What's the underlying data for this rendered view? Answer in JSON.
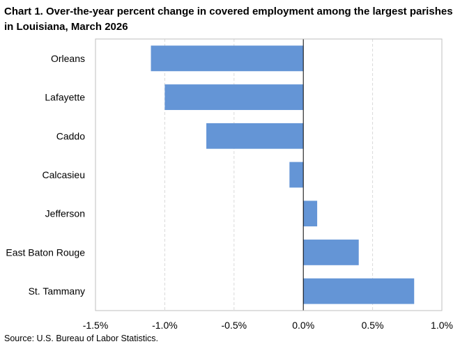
{
  "chart_data": {
    "type": "bar",
    "orientation": "horizontal",
    "title": "Chart 1. Over-the-year percent change in covered employment among the largest parishes in Louisiana, March 2026",
    "categories": [
      "Orleans",
      "Lafayette",
      "Caddo",
      "Calcasieu",
      "Jefferson",
      "East Baton Rouge",
      "St. Tammany"
    ],
    "values": [
      -1.1,
      -1.0,
      -0.7,
      -0.1,
      0.1,
      0.4,
      0.8
    ],
    "xlim": [
      -1.5,
      1.0
    ],
    "xticks": [
      -1.5,
      -1.0,
      -0.5,
      0.0,
      0.5,
      1.0
    ],
    "xtick_labels": [
      "-1.5%",
      "-1.0%",
      "-0.5%",
      "0.0%",
      "0.5%",
      "1.0%"
    ],
    "xlabel": "",
    "ylabel": "",
    "grid": "vertical dashed",
    "legend": "none",
    "bar_color": "#6495d6"
  },
  "source": "Source: U.S. Bureau of Labor Statistics."
}
